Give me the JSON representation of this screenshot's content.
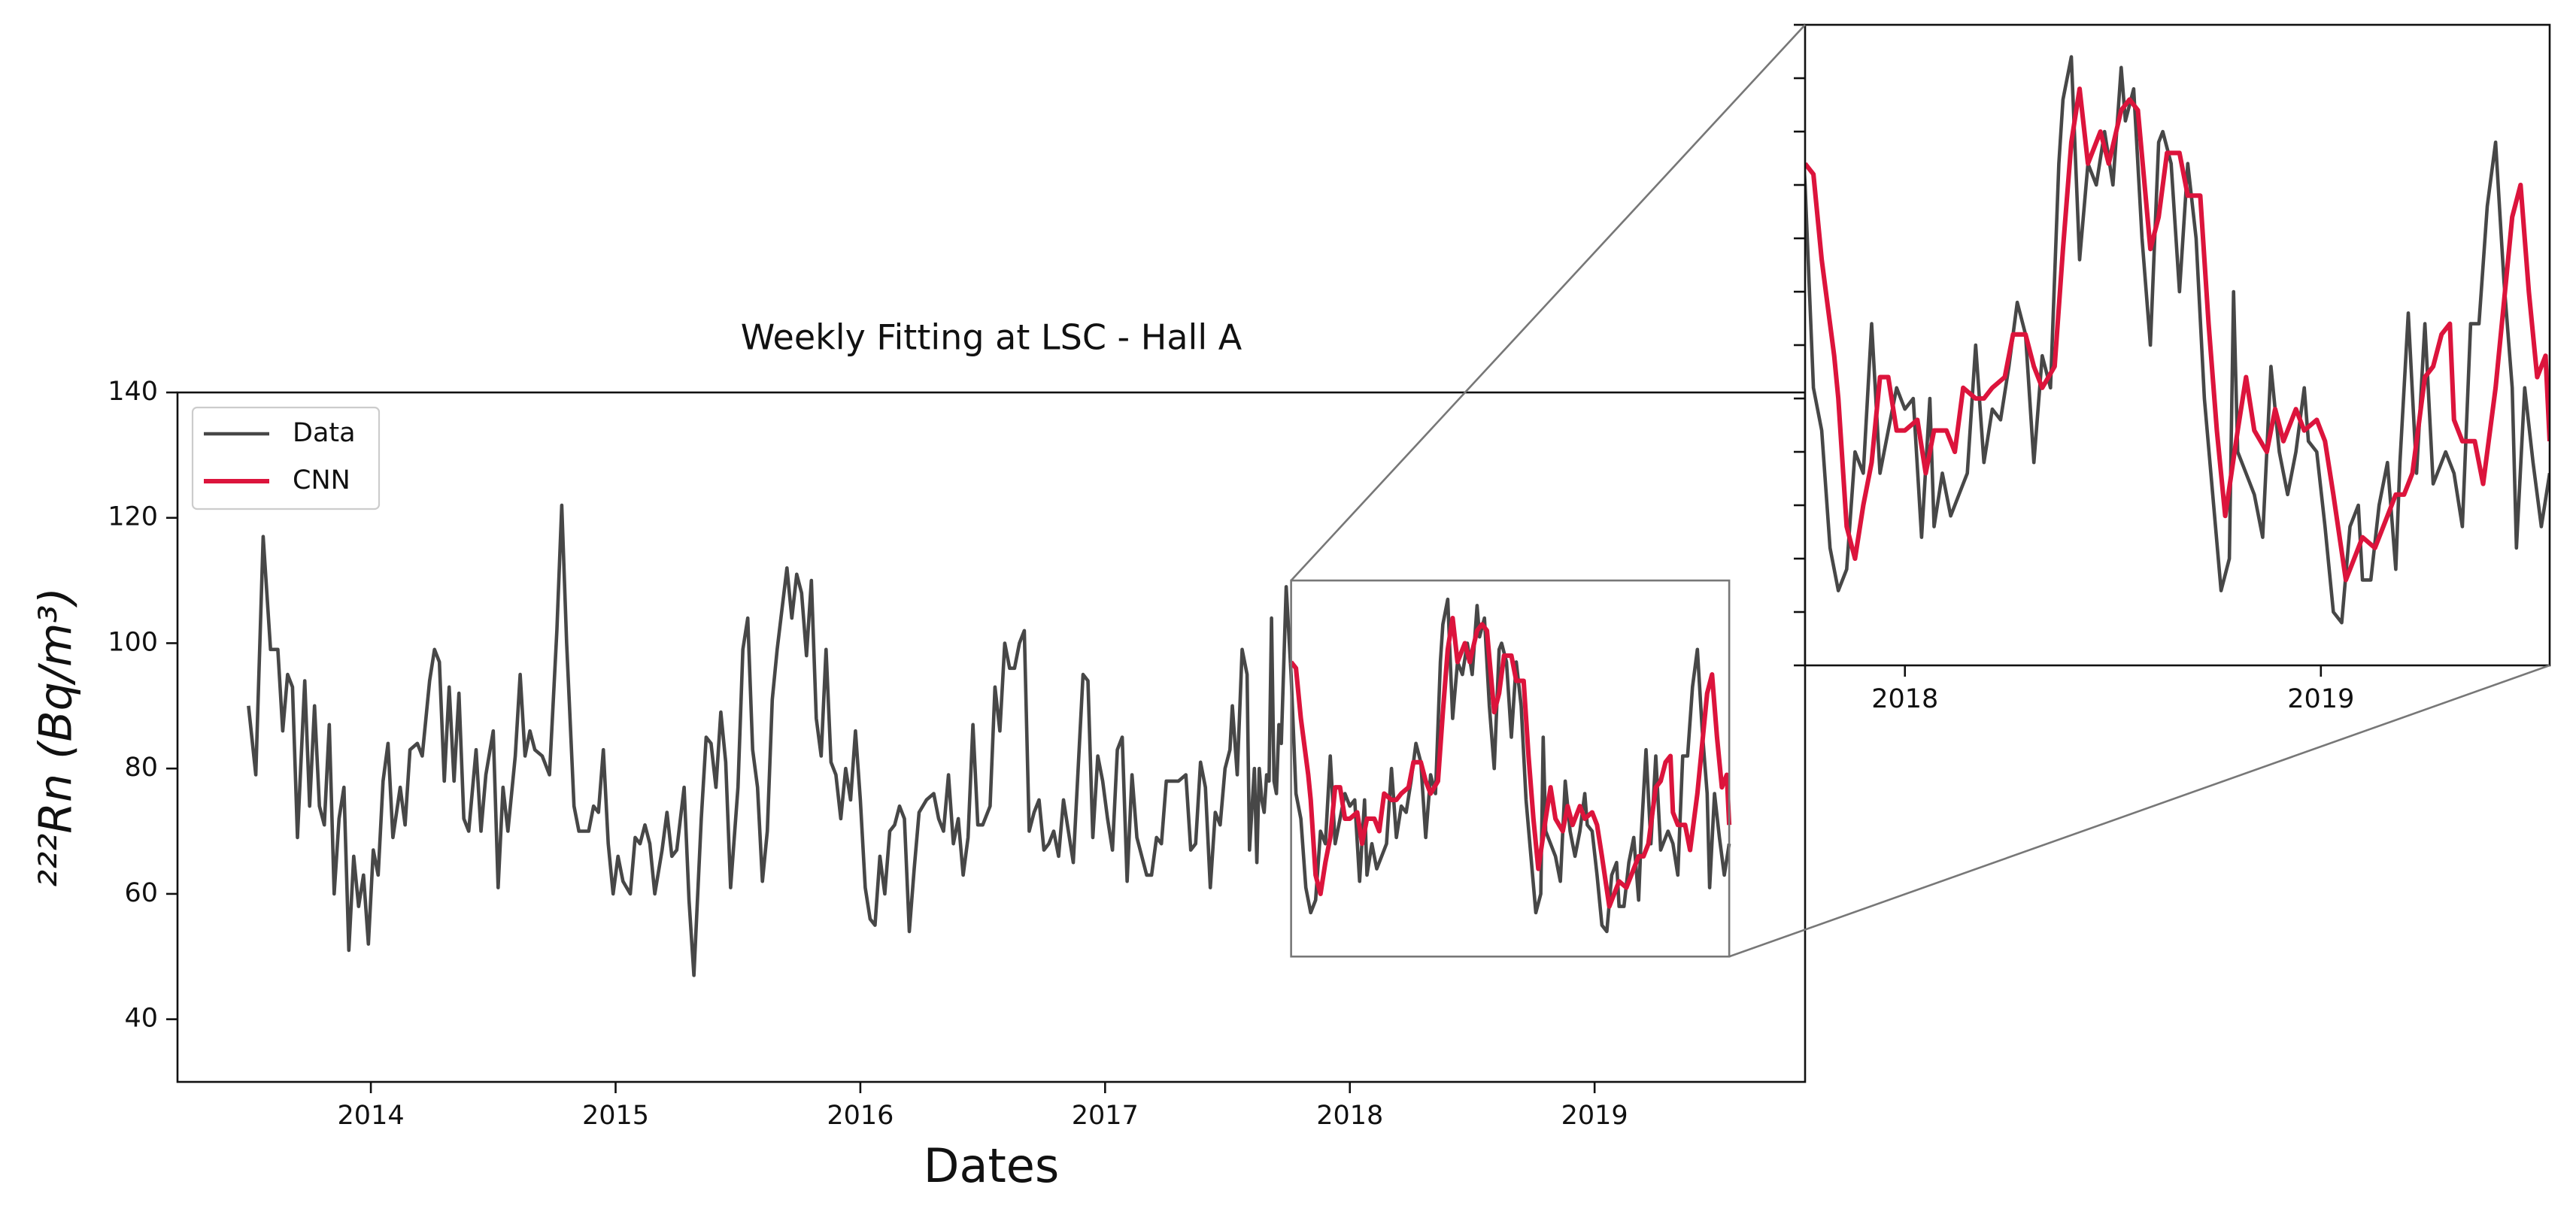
{
  "chart_data": {
    "type": "line",
    "title": "Weekly Fitting at LSC - Hall A",
    "xlabel": "Dates",
    "ylabel": "²²²Rn (Bq/m³)",
    "xlim": [
      2013.21,
      2019.86
    ],
    "ylim": [
      30,
      140
    ],
    "xticks": [
      2014,
      2015,
      2016,
      2017,
      2018,
      2019
    ],
    "yticks": [
      40,
      60,
      80,
      100,
      120,
      140
    ],
    "legend": "upper left",
    "series": [
      {
        "name": "Data",
        "color": "#474747",
        "x": [
          2013.5,
          2013.53,
          2013.56,
          2013.59,
          2013.62,
          2013.64,
          2013.66,
          2013.68,
          2013.7,
          2013.73,
          2013.75,
          2013.77,
          2013.79,
          2013.81,
          2013.83,
          2013.85,
          2013.87,
          2013.89,
          2013.91,
          2013.93,
          2013.95,
          2013.97,
          2013.99,
          2014.01,
          2014.03,
          2014.05,
          2014.07,
          2014.09,
          2014.12,
          2014.14,
          2014.16,
          2014.19,
          2014.21,
          2014.24,
          2014.26,
          2014.28,
          2014.3,
          2014.32,
          2014.34,
          2014.36,
          2014.38,
          2014.4,
          2014.43,
          2014.45,
          2014.47,
          2014.5,
          2014.52,
          2014.54,
          2014.56,
          2014.59,
          2014.61,
          2014.63,
          2014.65,
          2014.67,
          2014.7,
          2014.73,
          2014.76,
          2014.78,
          2014.8,
          2014.83,
          2014.85,
          2014.89,
          2014.91,
          2014.93,
          2014.95,
          2014.97,
          2014.99,
          2015.01,
          2015.03,
          2015.06,
          2015.08,
          2015.1,
          2015.12,
          2015.14,
          2015.16,
          2015.19,
          2015.21,
          2015.23,
          2015.25,
          2015.28,
          2015.3,
          2015.32,
          2015.35,
          2015.37,
          2015.39,
          2015.41,
          2015.43,
          2015.45,
          2015.47,
          2015.5,
          2015.52,
          2015.54,
          2015.56,
          2015.58,
          2015.6,
          2015.62,
          2015.64,
          2015.66,
          2015.7,
          2015.72,
          2015.74,
          2015.76,
          2015.78,
          2015.8,
          2015.82,
          2015.84,
          2015.86,
          2015.88,
          2015.9,
          2015.92,
          2015.94,
          2015.96,
          2015.98,
          2016.0,
          2016.02,
          2016.04,
          2016.06,
          2016.08,
          2016.1,
          2016.12,
          2016.14,
          2016.16,
          2016.18,
          2016.2,
          2016.22,
          2016.24,
          2016.27,
          2016.3,
          2016.32,
          2016.34,
          2016.36,
          2016.38,
          2016.4,
          2016.42,
          2016.44,
          2016.46,
          2016.48,
          2016.5,
          2016.53,
          2016.55,
          2016.57,
          2016.59,
          2016.61,
          2016.63,
          2016.65,
          2016.67,
          2016.69,
          2016.71,
          2016.73,
          2016.75,
          2016.77,
          2016.79,
          2016.81,
          2016.83,
          2016.85,
          2016.87,
          2016.89,
          2016.91,
          2016.93,
          2016.95,
          2016.97,
          2016.99,
          2017.01,
          2017.03,
          2017.05,
          2017.07,
          2017.09,
          2017.11,
          2017.13,
          2017.15,
          2017.17,
          2017.19,
          2017.21,
          2017.23,
          2017.25,
          2017.27,
          2017.3,
          2017.33,
          2017.35,
          2017.37,
          2017.39,
          2017.41,
          2017.43,
          2017.45,
          2017.47,
          2017.49,
          2017.51,
          2017.52,
          2017.54,
          2017.56,
          2017.58,
          2017.59,
          2017.61,
          2017.62,
          2017.63,
          2017.64,
          2017.65,
          2017.66,
          2017.67,
          2017.68,
          2017.69,
          2017.7,
          2017.71,
          2017.72,
          2017.74,
          2017.76,
          2017.78,
          2017.8,
          2017.82,
          2017.84,
          2017.86,
          2017.88,
          2017.9,
          2017.92,
          2017.94,
          2017.96,
          2017.98,
          2018.0,
          2018.02,
          2018.04,
          2018.06,
          2018.07,
          2018.09,
          2018.11,
          2018.13,
          2018.15,
          2018.17,
          2018.19,
          2018.21,
          2018.23,
          2018.25,
          2018.27,
          2018.29,
          2018.31,
          2018.33,
          2018.35,
          2018.37,
          2018.38,
          2018.4,
          2018.42,
          2018.44,
          2018.46,
          2018.48,
          2018.5,
          2018.52,
          2018.53,
          2018.55,
          2018.57,
          2018.59,
          2018.61,
          2018.62,
          2018.64,
          2018.66,
          2018.68,
          2018.7,
          2018.72,
          2018.74,
          2018.76,
          2018.78,
          2018.79,
          2018.8,
          2018.82,
          2018.84,
          2018.86,
          2018.88,
          2018.9,
          2018.92,
          2018.94,
          2018.96,
          2018.97,
          2018.99,
          2019.01,
          2019.03,
          2019.05,
          2019.07,
          2019.09,
          2019.1,
          2019.12,
          2019.14,
          2019.16,
          2019.18,
          2019.19,
          2019.21,
          2019.23,
          2019.25,
          2019.27,
          2019.29,
          2019.3,
          2019.32,
          2019.34,
          2019.36,
          2019.38,
          2019.4,
          2019.42,
          2019.44,
          2019.46,
          2019.47,
          2019.49,
          2019.51,
          2019.53,
          2019.55
        ],
        "values": [
          90,
          79,
          117,
          99,
          99,
          86,
          95,
          93,
          69,
          94,
          74,
          90,
          74,
          71,
          87,
          60,
          72,
          77,
          51,
          66,
          58,
          63,
          52,
          67,
          63,
          78,
          84,
          69,
          77,
          71,
          83,
          84,
          82,
          94,
          99,
          97,
          78,
          93,
          78,
          92,
          72,
          70,
          83,
          70,
          79,
          86,
          61,
          77,
          70,
          82,
          95,
          82,
          86,
          83,
          82,
          79,
          102,
          122,
          100,
          74,
          70,
          70,
          74,
          73,
          83,
          68,
          60,
          66,
          62,
          60,
          69,
          68,
          71,
          68,
          60,
          67,
          73,
          66,
          67,
          77,
          59,
          47,
          72,
          85,
          84,
          77,
          89,
          81,
          61,
          77,
          99,
          104,
          83,
          77,
          62,
          70,
          91,
          99,
          112,
          104,
          111,
          108,
          98,
          110,
          88,
          82,
          99,
          81,
          79,
          72,
          80,
          75,
          86,
          75,
          61,
          56,
          55,
          66,
          60,
          70,
          71,
          74,
          72,
          54,
          64,
          73,
          75,
          76,
          72,
          70,
          79,
          68,
          72,
          63,
          69,
          87,
          71,
          71,
          74,
          93,
          86,
          100,
          96,
          96,
          100,
          102,
          70,
          73,
          75,
          67,
          68,
          70,
          66,
          75,
          70,
          65,
          80,
          95,
          94,
          69,
          82,
          78,
          72,
          67,
          83,
          85,
          62,
          79,
          69,
          66,
          63,
          63,
          69,
          68,
          78,
          78,
          78,
          79,
          67,
          68,
          81,
          77,
          61,
          73,
          71,
          80,
          83,
          90,
          79,
          99,
          95,
          67,
          80,
          65,
          80,
          75,
          73,
          79,
          78,
          104,
          78,
          76,
          87,
          84,
          109,
          95,
          76,
          72,
          61,
          57,
          59,
          70,
          68,
          82,
          68,
          72,
          76,
          74,
          75,
          62,
          75,
          63,
          68,
          64,
          66,
          68,
          80,
          69,
          74,
          73,
          78,
          84,
          81,
          69,
          79,
          76,
          97,
          103,
          107,
          88,
          97,
          95,
          100,
          95,
          106,
          101,
          104,
          90,
          80,
          99,
          100,
          97,
          85,
          97,
          90,
          75,
          66,
          57,
          60,
          85,
          70,
          68,
          66,
          62,
          78,
          70,
          66,
          70,
          76,
          71,
          70,
          63,
          55,
          54,
          63,
          65,
          58,
          58,
          65,
          69,
          59,
          69,
          83,
          68,
          82,
          67,
          69,
          70,
          68,
          63,
          82,
          82,
          93,
          99,
          86,
          76,
          61,
          76,
          69,
          63,
          68
        ]
      },
      {
        "name": "CNN",
        "color": "#dc143c",
        "x": [
          2017.76,
          2017.78,
          2017.8,
          2017.83,
          2017.84,
          2017.86,
          2017.88,
          2017.9,
          2017.92,
          2017.94,
          2017.96,
          2017.98,
          2018.0,
          2018.03,
          2018.05,
          2018.07,
          2018.1,
          2018.12,
          2018.14,
          2018.17,
          2018.19,
          2018.21,
          2018.24,
          2018.26,
          2018.29,
          2018.31,
          2018.33,
          2018.36,
          2018.38,
          2018.4,
          2018.42,
          2018.44,
          2018.47,
          2018.49,
          2018.52,
          2018.54,
          2018.56,
          2018.59,
          2018.61,
          2018.63,
          2018.66,
          2018.68,
          2018.71,
          2018.73,
          2018.75,
          2018.77,
          2018.8,
          2018.82,
          2018.84,
          2018.87,
          2018.89,
          2018.91,
          2018.94,
          2018.96,
          2018.99,
          2019.01,
          2019.03,
          2019.06,
          2019.08,
          2019.1,
          2019.13,
          2019.15,
          2019.18,
          2019.2,
          2019.22,
          2019.25,
          2019.27,
          2019.29,
          2019.31,
          2019.32,
          2019.34,
          2019.37,
          2019.39,
          2019.42,
          2019.44,
          2019.46,
          2019.48,
          2019.5,
          2019.52,
          2019.54,
          2019.55
        ],
        "values": [
          97,
          96,
          88,
          79,
          75,
          63,
          60,
          65,
          69,
          77,
          77,
          72,
          72,
          73,
          68,
          72,
          72,
          70,
          76,
          75,
          75,
          76,
          77,
          81,
          81,
          78,
          76,
          78,
          89,
          99,
          104,
          97,
          100,
          97,
          102,
          103,
          102,
          89,
          92,
          98,
          98,
          94,
          94,
          82,
          72,
          64,
          72,
          77,
          72,
          70,
          74,
          71,
          74,
          72,
          73,
          71,
          66,
          58,
          60,
          62,
          61,
          63,
          66,
          66,
          68,
          77,
          78,
          81,
          82,
          73,
          71,
          71,
          67,
          76,
          84,
          92,
          95,
          85,
          77,
          79,
          71
        ]
      }
    ],
    "inset": {
      "xlim": [
        2017.76,
        2019.55
      ],
      "ylim": [
        50,
        110
      ],
      "xticks": [
        2018,
        2019
      ],
      "yticks": [
        50,
        55,
        60,
        65,
        70,
        75,
        80,
        85,
        90,
        95,
        100,
        105,
        110
      ]
    }
  }
}
